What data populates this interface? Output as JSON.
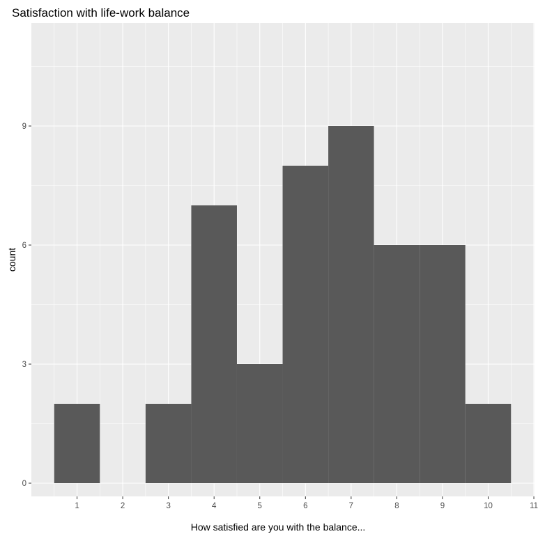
{
  "chart_data": {
    "type": "bar",
    "title": "Satisfaction with life-work balance",
    "xlabel": "How satisfied are you with the balance...",
    "ylabel": "count",
    "x_ticks": [
      1,
      2,
      3,
      4,
      5,
      6,
      7,
      8,
      9,
      10,
      11
    ],
    "y_ticks": [
      0,
      3,
      6,
      9
    ],
    "xlim": [
      0.0,
      11.0
    ],
    "ylim": [
      0,
      9
    ],
    "grid": true,
    "bins": [
      {
        "x": 1,
        "count": 2
      },
      {
        "x": 2,
        "count": 0
      },
      {
        "x": 3,
        "count": 2
      },
      {
        "x": 4,
        "count": 7
      },
      {
        "x": 5,
        "count": 3
      },
      {
        "x": 6,
        "count": 8
      },
      {
        "x": 7,
        "count": 9
      },
      {
        "x": 8,
        "count": 6
      },
      {
        "x": 9,
        "count": 6
      },
      {
        "x": 10,
        "count": 2
      }
    ],
    "bar_color": "#595959",
    "panel_color": "#ebebeb"
  }
}
